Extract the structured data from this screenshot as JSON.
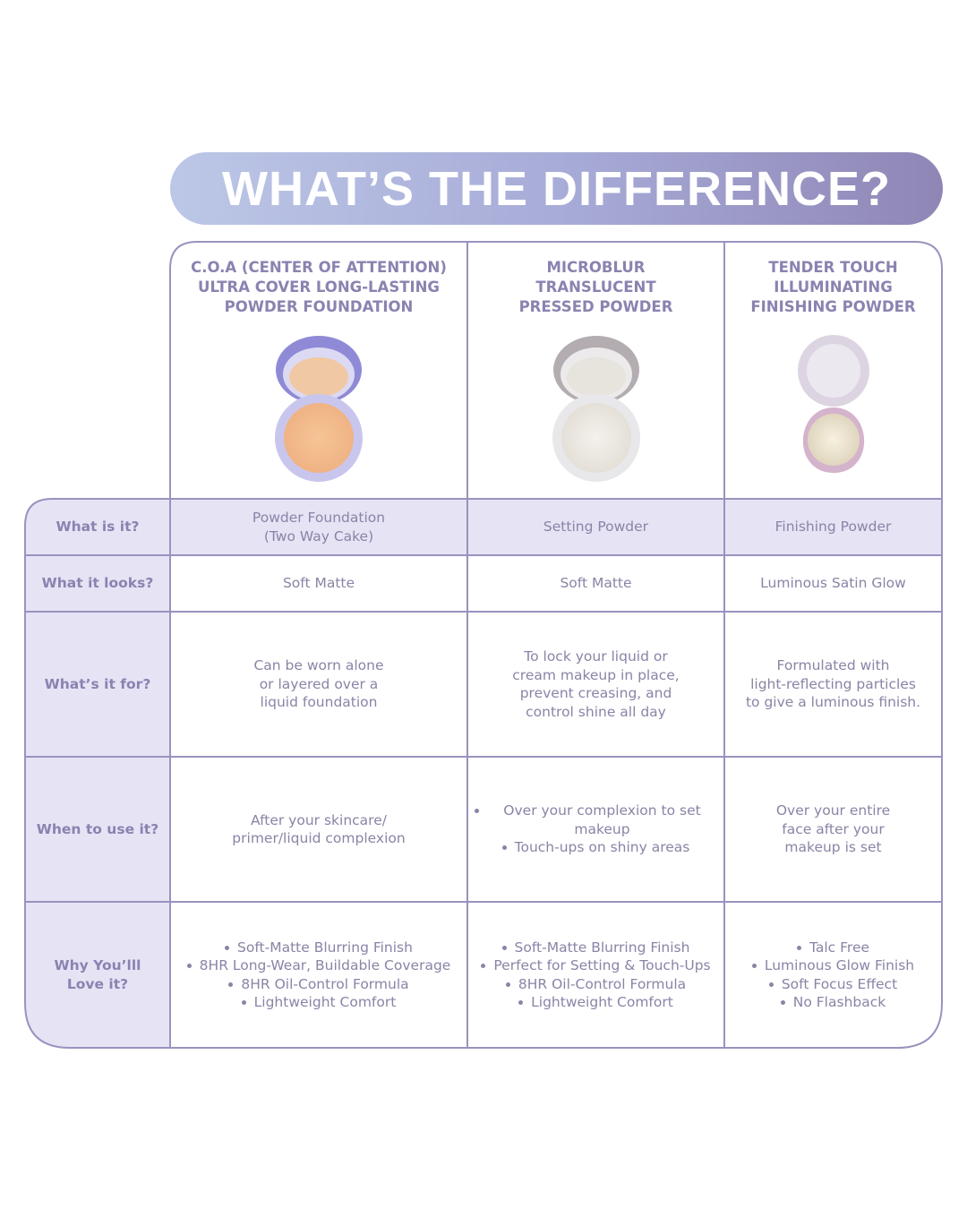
{
  "title": "WHAT’S THE DIFFERENCE?",
  "products": [
    {
      "name": [
        "C.O.A (CENTER OF ATTENTION)",
        "ULTRA COVER LONG-LASTING",
        "POWDER FOUNDATION"
      ]
    },
    {
      "name": [
        "MICROBLUR",
        "TRANSLUCENT",
        "PRESSED POWDER"
      ]
    },
    {
      "name": [
        "TENDER TOUCH",
        "ILLUMINATING",
        "FINISHING POWDER"
      ]
    }
  ],
  "rows": [
    {
      "label": [
        "What is it?"
      ],
      "cells": [
        {
          "lines": [
            "Powder Foundation",
            "(Two Way Cake)"
          ]
        },
        {
          "lines": [
            "Setting Powder"
          ]
        },
        {
          "lines": [
            "Finishing Powder"
          ]
        }
      ]
    },
    {
      "label": [
        "What it looks?"
      ],
      "cells": [
        {
          "lines": [
            "Soft Matte"
          ]
        },
        {
          "lines": [
            "Soft Matte"
          ]
        },
        {
          "lines": [
            "Luminous Satin Glow"
          ]
        }
      ]
    },
    {
      "label": [
        "What’s it for?"
      ],
      "cells": [
        {
          "lines": [
            "Can be worn alone",
            "or layered over a",
            "liquid foundation"
          ]
        },
        {
          "lines": [
            "To lock your liquid or",
            "cream makeup in place,",
            "prevent creasing, and",
            "control shine all day"
          ]
        },
        {
          "lines": [
            "Formulated with",
            "light-reflecting particles",
            "to give a luminous finish."
          ]
        }
      ]
    },
    {
      "label": [
        "When to use it?"
      ],
      "cells": [
        {
          "lines": [
            "After your skincare/",
            "primer/liquid complexion"
          ]
        },
        {
          "bullets": [
            "Over your complexion to set makeup",
            "Touch-ups on shiny areas"
          ]
        },
        {
          "lines": [
            "Over your entire",
            "face after your",
            "makeup is set"
          ]
        }
      ]
    },
    {
      "label": [
        "Why You’lll",
        "Love it?"
      ],
      "cells": [
        {
          "bullets": [
            "Soft-Matte Blurring Finish",
            "8HR Long-Wear, Buildable Coverage",
            "8HR Oil-Control Formula",
            "Lightweight Comfort"
          ]
        },
        {
          "bullets": [
            "Soft-Matte Blurring Finish",
            "Perfect for Setting & Touch-Ups",
            "8HR Oil-Control Formula",
            "Lightweight Comfort"
          ]
        },
        {
          "bullets": [
            "Talc Free",
            "Luminous Glow Finish",
            "Soft Focus Effect",
            "No Flashback"
          ]
        }
      ]
    }
  ]
}
